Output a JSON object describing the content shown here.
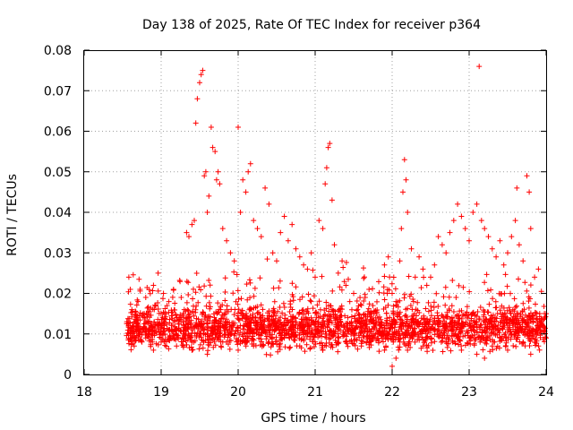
{
  "chart_data": {
    "type": "scatter",
    "title": "Day 138 of 2025, Rate Of TEC Index for receiver p364",
    "xlabel": "GPS time / hours",
    "ylabel": "ROTI / TECUs",
    "xlim": [
      18,
      24
    ],
    "ylim": [
      0,
      0.08
    ],
    "x_ticks": [
      18,
      19,
      20,
      21,
      22,
      23,
      24
    ],
    "x_tick_labels": [
      "18",
      "19",
      "20",
      "21",
      "22",
      "23",
      "24"
    ],
    "y_ticks": [
      0,
      0.01,
      0.02,
      0.03,
      0.04,
      0.05,
      0.06,
      0.07,
      0.08
    ],
    "y_tick_labels": [
      "0",
      "0.01",
      "0.02",
      "0.03",
      "0.04",
      "0.05",
      "0.06",
      "0.07",
      "0.08"
    ],
    "grid": true,
    "marker": "+",
    "color": "#ff0000",
    "series": [
      {
        "name": "ROTI",
        "points": [
          [
            18.58,
            0.024
          ],
          [
            18.6,
            0.021
          ],
          [
            18.62,
            0.016
          ],
          [
            18.64,
            0.012
          ],
          [
            18.66,
            0.009
          ],
          [
            18.68,
            0.014
          ],
          [
            18.7,
            0.018
          ],
          [
            18.72,
            0.011
          ],
          [
            18.75,
            0.008
          ],
          [
            18.78,
            0.015
          ],
          [
            18.8,
            0.019
          ],
          [
            18.83,
            0.013
          ],
          [
            18.86,
            0.01
          ],
          [
            18.9,
            0.022
          ],
          [
            18.93,
            0.017
          ],
          [
            18.96,
            0.025
          ],
          [
            19.0,
            0.012
          ],
          [
            19.03,
            0.02
          ],
          [
            19.06,
            0.015
          ],
          [
            19.1,
            0.018
          ],
          [
            19.13,
            0.009
          ],
          [
            19.16,
            0.021
          ],
          [
            19.2,
            0.014
          ],
          [
            19.23,
            0.011
          ],
          [
            19.26,
            0.019
          ],
          [
            19.3,
            0.016
          ],
          [
            19.33,
            0.035
          ],
          [
            19.36,
            0.034
          ],
          [
            19.4,
            0.037
          ],
          [
            19.43,
            0.038
          ],
          [
            19.45,
            0.062
          ],
          [
            19.47,
            0.068
          ],
          [
            19.5,
            0.072
          ],
          [
            19.52,
            0.074
          ],
          [
            19.54,
            0.075
          ],
          [
            19.56,
            0.049
          ],
          [
            19.58,
            0.05
          ],
          [
            19.6,
            0.04
          ],
          [
            19.62,
            0.044
          ],
          [
            19.65,
            0.061
          ],
          [
            19.67,
            0.056
          ],
          [
            19.7,
            0.055
          ],
          [
            19.72,
            0.048
          ],
          [
            19.74,
            0.05
          ],
          [
            19.76,
            0.047
          ],
          [
            19.8,
            0.036
          ],
          [
            19.85,
            0.033
          ],
          [
            19.9,
            0.03
          ],
          [
            19.95,
            0.028
          ],
          [
            20.0,
            0.061
          ],
          [
            20.03,
            0.04
          ],
          [
            20.06,
            0.048
          ],
          [
            20.1,
            0.045
          ],
          [
            20.13,
            0.05
          ],
          [
            20.16,
            0.052
          ],
          [
            20.2,
            0.038
          ],
          [
            20.25,
            0.036
          ],
          [
            20.3,
            0.034
          ],
          [
            20.35,
            0.046
          ],
          [
            20.4,
            0.042
          ],
          [
            20.45,
            0.03
          ],
          [
            20.5,
            0.028
          ],
          [
            20.55,
            0.035
          ],
          [
            20.6,
            0.039
          ],
          [
            20.65,
            0.033
          ],
          [
            20.7,
            0.037
          ],
          [
            20.75,
            0.031
          ],
          [
            20.8,
            0.029
          ],
          [
            20.85,
            0.027
          ],
          [
            20.9,
            0.026
          ],
          [
            20.95,
            0.03
          ],
          [
            21.0,
            0.024
          ],
          [
            21.05,
            0.038
          ],
          [
            21.1,
            0.036
          ],
          [
            21.13,
            0.047
          ],
          [
            21.15,
            0.051
          ],
          [
            21.17,
            0.056
          ],
          [
            21.19,
            0.057
          ],
          [
            21.22,
            0.043
          ],
          [
            21.25,
            0.032
          ],
          [
            21.3,
            0.025
          ],
          [
            21.35,
            0.028
          ],
          [
            21.4,
            0.022
          ],
          [
            21.45,
            0.018
          ],
          [
            21.5,
            0.02
          ],
          [
            21.55,
            0.016
          ],
          [
            21.6,
            0.014
          ],
          [
            21.65,
            0.019
          ],
          [
            21.7,
            0.021
          ],
          [
            21.75,
            0.017
          ],
          [
            21.8,
            0.015
          ],
          [
            21.85,
            0.013
          ],
          [
            21.9,
            0.027
          ],
          [
            21.95,
            0.029
          ],
          [
            22.0,
            0.02
          ],
          [
            22.05,
            0.018
          ],
          [
            22.1,
            0.028
          ],
          [
            22.12,
            0.036
          ],
          [
            22.14,
            0.045
          ],
          [
            22.16,
            0.053
          ],
          [
            22.18,
            0.048
          ],
          [
            22.2,
            0.04
          ],
          [
            22.25,
            0.031
          ],
          [
            22.3,
            0.024
          ],
          [
            22.35,
            0.029
          ],
          [
            22.4,
            0.026
          ],
          [
            22.45,
            0.022
          ],
          [
            22.5,
            0.024
          ],
          [
            22.55,
            0.027
          ],
          [
            22.6,
            0.034
          ],
          [
            22.65,
            0.032
          ],
          [
            22.7,
            0.03
          ],
          [
            22.75,
            0.035
          ],
          [
            22.8,
            0.038
          ],
          [
            22.85,
            0.042
          ],
          [
            22.9,
            0.039
          ],
          [
            22.95,
            0.036
          ],
          [
            23.0,
            0.033
          ],
          [
            23.05,
            0.04
          ],
          [
            23.1,
            0.042
          ],
          [
            23.13,
            0.076
          ],
          [
            23.16,
            0.038
          ],
          [
            23.2,
            0.036
          ],
          [
            23.25,
            0.034
          ],
          [
            23.3,
            0.031
          ],
          [
            23.35,
            0.029
          ],
          [
            23.4,
            0.033
          ],
          [
            23.45,
            0.027
          ],
          [
            23.5,
            0.03
          ],
          [
            23.55,
            0.034
          ],
          [
            23.6,
            0.038
          ],
          [
            23.62,
            0.046
          ],
          [
            23.65,
            0.032
          ],
          [
            23.7,
            0.028
          ],
          [
            23.75,
            0.049
          ],
          [
            23.78,
            0.045
          ],
          [
            23.8,
            0.036
          ],
          [
            23.85,
            0.024
          ],
          [
            23.9,
            0.026
          ],
          [
            23.95,
            0.012
          ],
          [
            24.0,
            0.015
          ],
          [
            18.6,
            0.01
          ],
          [
            18.65,
            0.007
          ],
          [
            18.7,
            0.012
          ],
          [
            18.8,
            0.009
          ],
          [
            18.9,
            0.006
          ],
          [
            19.0,
            0.008
          ],
          [
            19.1,
            0.011
          ],
          [
            19.2,
            0.007
          ],
          [
            19.3,
            0.009
          ],
          [
            19.4,
            0.006
          ],
          [
            19.5,
            0.01
          ],
          [
            19.6,
            0.005
          ],
          [
            19.7,
            0.012
          ],
          [
            19.8,
            0.008
          ],
          [
            19.9,
            0.01
          ],
          [
            20.0,
            0.006
          ],
          [
            20.1,
            0.009
          ],
          [
            20.2,
            0.007
          ],
          [
            20.3,
            0.011
          ],
          [
            20.4,
            0.008
          ],
          [
            20.5,
            0.012
          ],
          [
            20.6,
            0.009
          ],
          [
            20.7,
            0.01
          ],
          [
            20.8,
            0.007
          ],
          [
            20.9,
            0.011
          ],
          [
            21.0,
            0.008
          ],
          [
            21.1,
            0.006
          ],
          [
            21.2,
            0.009
          ],
          [
            21.3,
            0.012
          ],
          [
            21.4,
            0.008
          ],
          [
            21.5,
            0.01
          ],
          [
            21.6,
            0.007
          ],
          [
            21.7,
            0.009
          ],
          [
            21.8,
            0.011
          ],
          [
            21.9,
            0.006
          ],
          [
            22.0,
            0.002
          ],
          [
            22.05,
            0.004
          ],
          [
            22.1,
            0.008
          ],
          [
            22.2,
            0.006
          ],
          [
            22.3,
            0.01
          ],
          [
            22.4,
            0.007
          ],
          [
            22.5,
            0.009
          ],
          [
            22.6,
            0.011
          ],
          [
            22.7,
            0.008
          ],
          [
            22.8,
            0.01
          ],
          [
            22.9,
            0.006
          ],
          [
            23.0,
            0.009
          ],
          [
            23.1,
            0.005
          ],
          [
            23.2,
            0.004
          ],
          [
            23.3,
            0.007
          ],
          [
            23.4,
            0.009
          ],
          [
            23.5,
            0.006
          ],
          [
            23.6,
            0.01
          ],
          [
            23.7,
            0.008
          ],
          [
            23.8,
            0.005
          ],
          [
            23.9,
            0.007
          ],
          [
            24.0,
            0.009
          ]
        ]
      }
    ],
    "dense_band": {
      "x_start": 18.55,
      "x_end": 24.0,
      "y_center": 0.0115,
      "y_spread": 0.0045,
      "approx_count": 2400
    }
  }
}
